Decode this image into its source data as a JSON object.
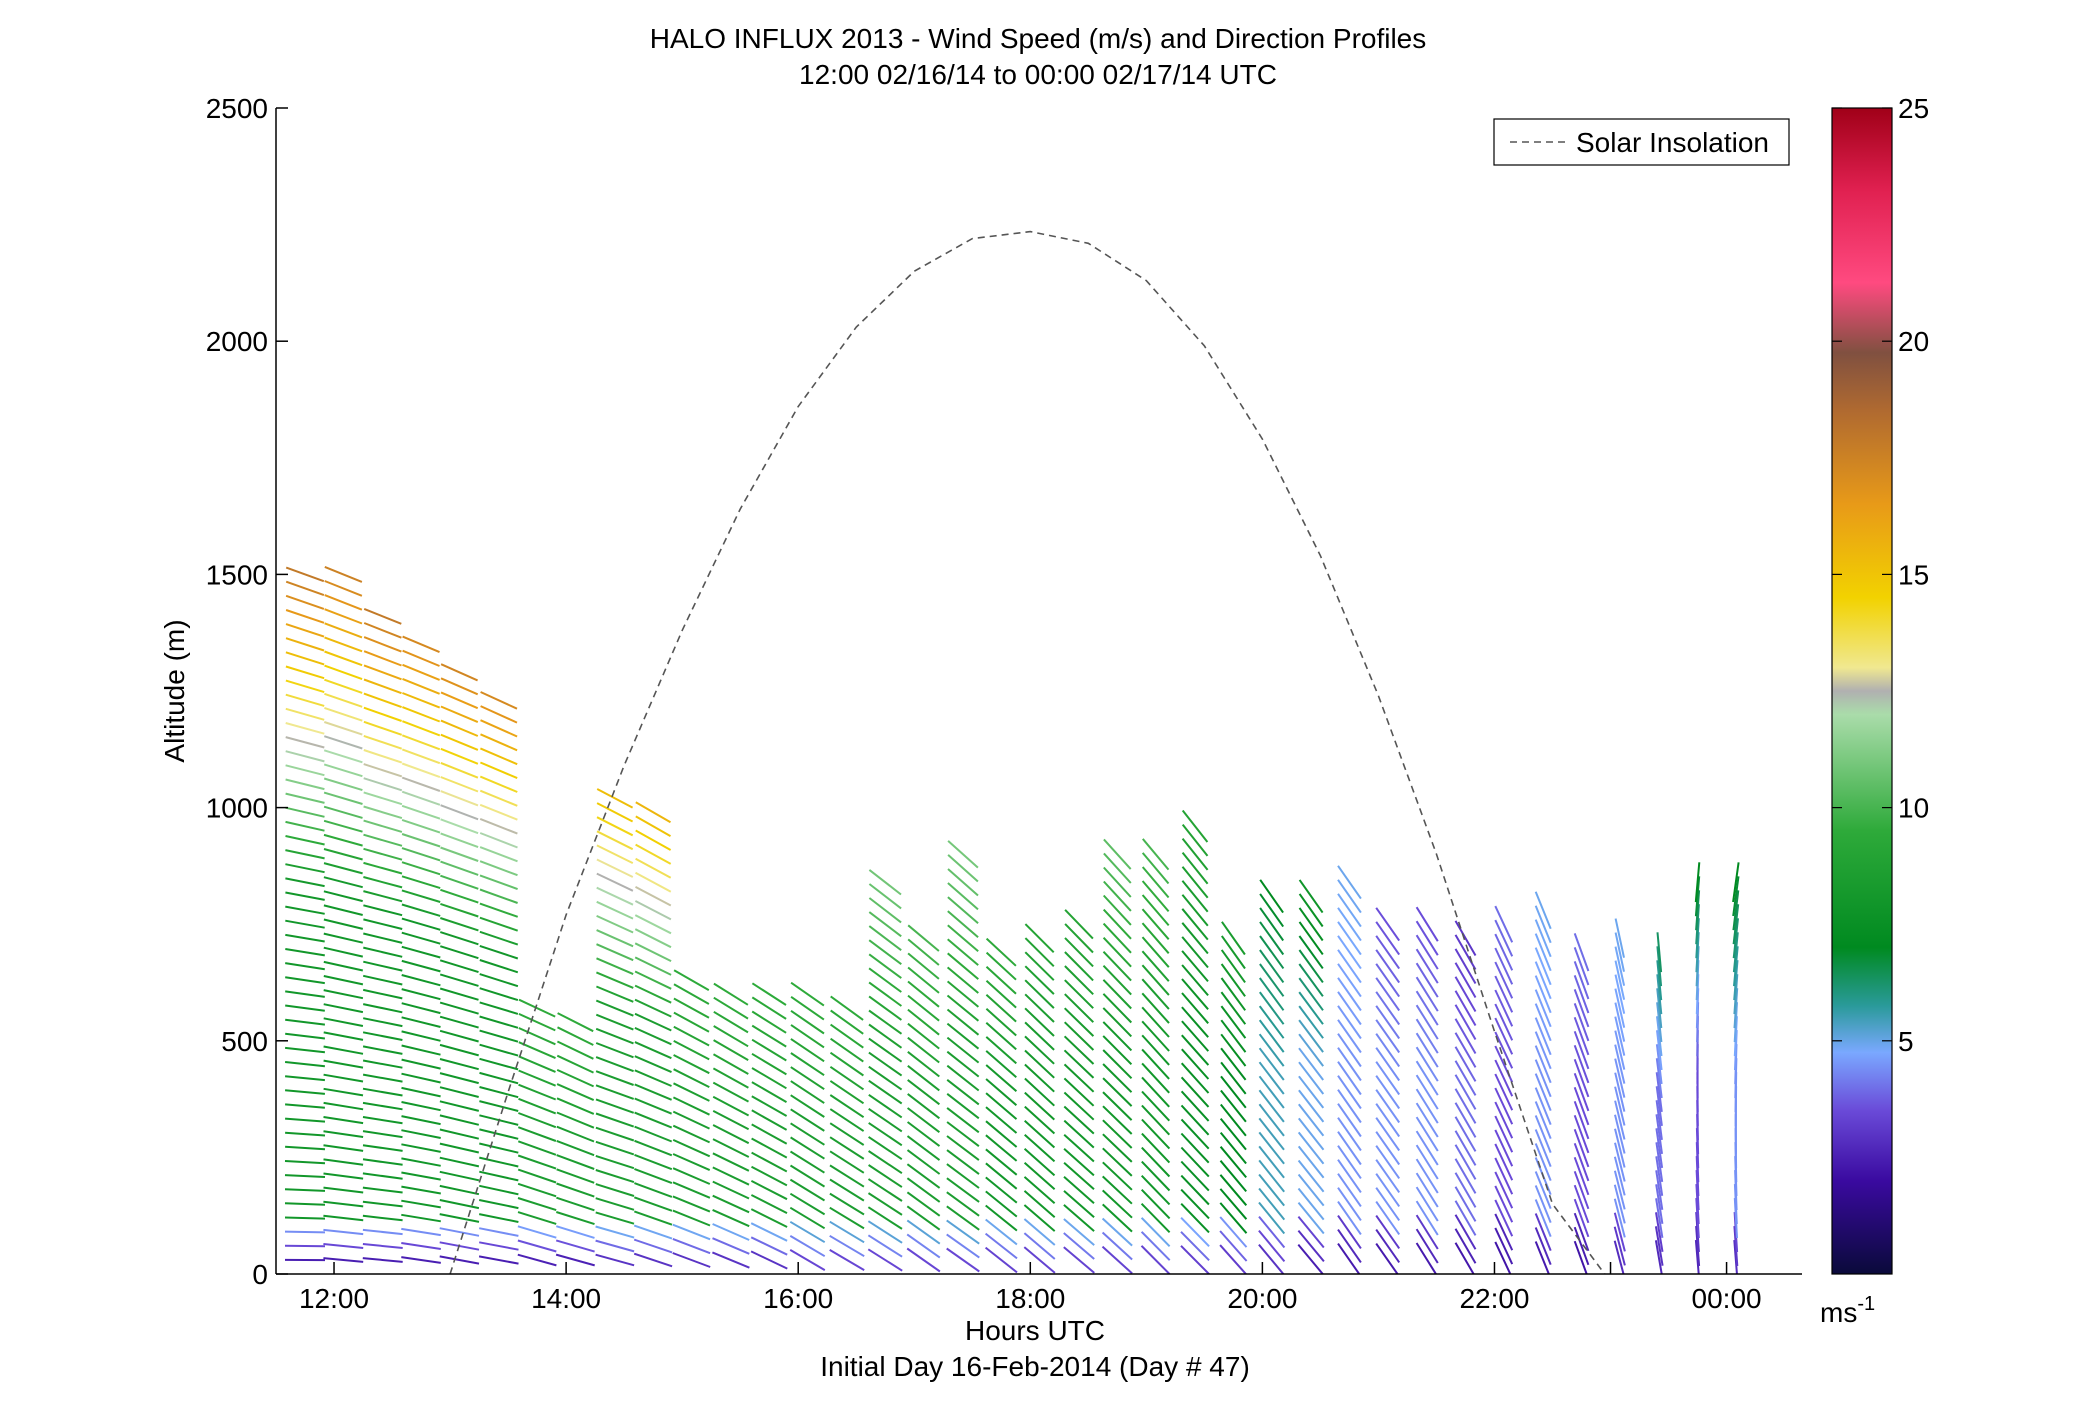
{
  "chart_data": {
    "type": "scatter",
    "title": "HALO INFLUX 2013 - Wind Speed (m/s) and Direction Profiles",
    "subtitle": "12:00 02/16/14 to 00:00 02/17/14  UTC",
    "xlabel": "Hours UTC",
    "xlabel2": "Initial Day 16-Feb-2014 (Day # 47)",
    "ylabel": "Altitude (m)",
    "xlim": [
      11.5,
      24.65
    ],
    "ylim": [
      0,
      2500
    ],
    "x_ticks": [
      12,
      14,
      16,
      18,
      20,
      22,
      23,
      24
    ],
    "x_tick_labels": [
      "12:00",
      "14:00",
      "16:00",
      "18:00",
      "20:00",
      "22:00",
      "",
      "00:00"
    ],
    "y_ticks": [
      0,
      500,
      1000,
      1500,
      2000,
      2500
    ],
    "y_tick_labels": [
      "0",
      "500",
      "1000",
      "1500",
      "2000",
      "2500"
    ],
    "grid": false,
    "legend": {
      "position": "top-right",
      "entries": [
        "Solar Insolation"
      ]
    },
    "colorbar": {
      "min": 0,
      "max": 25,
      "ticks": [
        5,
        10,
        15,
        20,
        25
      ],
      "tick_labels": [
        "5",
        "10",
        "15",
        "20",
        "25"
      ],
      "unit": "ms",
      "unit_exp": "-1"
    },
    "solar_insolation": {
      "x": [
        13.0,
        13.5,
        14.0,
        14.5,
        15.0,
        15.5,
        16.0,
        16.5,
        17.0,
        17.5,
        18.0,
        18.5,
        19.0,
        19.5,
        20.0,
        20.5,
        21.0,
        21.5,
        22.0,
        22.5,
        22.95
      ],
      "y": [
        0,
        390,
        770,
        1090,
        1380,
        1640,
        1860,
        2030,
        2150,
        2220,
        2235,
        2210,
        2130,
        1990,
        1790,
        1540,
        1240,
        900,
        520,
        150,
        0
      ]
    },
    "profiles": [
      {
        "time": 11.75,
        "top": 1510,
        "speed_bottom": 1.5,
        "speed_mid": 8.0,
        "speed_top": 18.0,
        "dir_bottom": 270,
        "dir_top": 290
      },
      {
        "time": 12.08,
        "top": 1500,
        "speed_bottom": 1.5,
        "speed_mid": 8.0,
        "speed_top": 17.5,
        "dir_bottom": 275,
        "dir_top": 292
      },
      {
        "time": 12.42,
        "top": 1420,
        "speed_bottom": 1.5,
        "speed_mid": 8.0,
        "speed_top": 18.0,
        "dir_bottom": 275,
        "dir_top": 292
      },
      {
        "time": 12.75,
        "top": 1370,
        "speed_bottom": 1.5,
        "speed_mid": 8.0,
        "speed_top": 17.5,
        "dir_bottom": 278,
        "dir_top": 293
      },
      {
        "time": 13.08,
        "top": 1300,
        "speed_bottom": 1.5,
        "speed_mid": 8.0,
        "speed_top": 17.5,
        "dir_bottom": 280,
        "dir_top": 294
      },
      {
        "time": 13.42,
        "top": 1250,
        "speed_bottom": 1.5,
        "speed_mid": 8.0,
        "speed_top": 17.5,
        "dir_bottom": 280,
        "dir_top": 295
      },
      {
        "time": 13.75,
        "top": 570,
        "speed_bottom": 1.5,
        "speed_mid": 8.5,
        "speed_top": 9.5,
        "dir_bottom": 285,
        "dir_top": 295
      },
      {
        "time": 14.08,
        "top": 540,
        "speed_bottom": 1.5,
        "speed_mid": 8.5,
        "speed_top": 9.5,
        "dir_bottom": 285,
        "dir_top": 297
      },
      {
        "time": 14.42,
        "top": 1040,
        "speed_bottom": 2.0,
        "speed_mid": 8.5,
        "speed_top": 15.5,
        "dir_bottom": 285,
        "dir_top": 298
      },
      {
        "time": 14.75,
        "top": 990,
        "speed_bottom": 2.0,
        "speed_mid": 8.5,
        "speed_top": 15.5,
        "dir_bottom": 288,
        "dir_top": 300
      },
      {
        "time": 15.08,
        "top": 640,
        "speed_bottom": 2.0,
        "speed_mid": 8.5,
        "speed_top": 9.5,
        "dir_bottom": 290,
        "dir_top": 300
      },
      {
        "time": 15.42,
        "top": 600,
        "speed_bottom": 2.0,
        "speed_mid": 8.5,
        "speed_top": 9.5,
        "dir_bottom": 292,
        "dir_top": 302
      },
      {
        "time": 15.75,
        "top": 610,
        "speed_bottom": 2.0,
        "speed_mid": 8.5,
        "speed_top": 9.5,
        "dir_bottom": 295,
        "dir_top": 303
      },
      {
        "time": 16.08,
        "top": 600,
        "speed_bottom": 2.5,
        "speed_mid": 8.5,
        "speed_top": 9.5,
        "dir_bottom": 300,
        "dir_top": 305
      },
      {
        "time": 16.42,
        "top": 580,
        "speed_bottom": 2.5,
        "speed_mid": 8.5,
        "speed_top": 9.5,
        "dir_bottom": 300,
        "dir_top": 306
      },
      {
        "time": 16.75,
        "top": 860,
        "speed_bottom": 2.5,
        "speed_mid": 8.5,
        "speed_top": 11.0,
        "dir_bottom": 302,
        "dir_top": 308
      },
      {
        "time": 17.08,
        "top": 720,
        "speed_bottom": 2.5,
        "speed_mid": 8.5,
        "speed_top": 10.0,
        "dir_bottom": 305,
        "dir_top": 310
      },
      {
        "time": 17.42,
        "top": 910,
        "speed_bottom": 2.5,
        "speed_mid": 8.5,
        "speed_top": 11.0,
        "dir_bottom": 305,
        "dir_top": 312
      },
      {
        "time": 17.75,
        "top": 700,
        "speed_bottom": 2.5,
        "speed_mid": 8.0,
        "speed_top": 9.5,
        "dir_bottom": 308,
        "dir_top": 313
      },
      {
        "time": 18.08,
        "top": 730,
        "speed_bottom": 2.5,
        "speed_mid": 8.0,
        "speed_top": 9.0,
        "dir_bottom": 310,
        "dir_top": 315
      },
      {
        "time": 18.42,
        "top": 760,
        "speed_bottom": 2.5,
        "speed_mid": 8.0,
        "speed_top": 9.0,
        "dir_bottom": 310,
        "dir_top": 316
      },
      {
        "time": 18.75,
        "top": 910,
        "speed_bottom": 2.5,
        "speed_mid": 8.0,
        "speed_top": 10.5,
        "dir_bottom": 312,
        "dir_top": 318
      },
      {
        "time": 19.08,
        "top": 900,
        "speed_bottom": 2.5,
        "speed_mid": 8.0,
        "speed_top": 10.0,
        "dir_bottom": 315,
        "dir_top": 320
      },
      {
        "time": 19.42,
        "top": 980,
        "speed_bottom": 2.5,
        "speed_mid": 7.5,
        "speed_top": 9.0,
        "dir_bottom": 315,
        "dir_top": 322
      },
      {
        "time": 19.75,
        "top": 740,
        "speed_bottom": 2.5,
        "speed_mid": 7.0,
        "speed_top": 8.5,
        "dir_bottom": 318,
        "dir_top": 325
      },
      {
        "time": 20.08,
        "top": 810,
        "speed_bottom": 2.5,
        "speed_mid": 5.5,
        "speed_top": 7.0,
        "dir_bottom": 320,
        "dir_top": 325
      },
      {
        "time": 20.42,
        "top": 830,
        "speed_bottom": 2.0,
        "speed_mid": 5.0,
        "speed_top": 8.0,
        "dir_bottom": 320,
        "dir_top": 325
      },
      {
        "time": 20.75,
        "top": 860,
        "speed_bottom": 2.0,
        "speed_mid": 4.5,
        "speed_top": 5.0,
        "dir_bottom": 325,
        "dir_top": 325
      },
      {
        "time": 21.08,
        "top": 770,
        "speed_bottom": 2.0,
        "speed_mid": 4.5,
        "speed_top": 3.5,
        "dir_bottom": 325,
        "dir_top": 325
      },
      {
        "time": 21.42,
        "top": 760,
        "speed_bottom": 2.0,
        "speed_mid": 4.5,
        "speed_top": 3.5,
        "dir_bottom": 328,
        "dir_top": 328
      },
      {
        "time": 21.75,
        "top": 740,
        "speed_bottom": 2.0,
        "speed_mid": 4.0,
        "speed_top": 3.0,
        "dir_bottom": 330,
        "dir_top": 330
      },
      {
        "time": 22.08,
        "top": 760,
        "speed_bottom": 2.0,
        "speed_mid": 3.5,
        "speed_top": 4.0,
        "dir_bottom": 335,
        "dir_top": 335
      },
      {
        "time": 22.42,
        "top": 800,
        "speed_bottom": 2.0,
        "speed_mid": 4.5,
        "speed_top": 5.0,
        "dir_bottom": 338,
        "dir_top": 338
      },
      {
        "time": 22.75,
        "top": 690,
        "speed_bottom": 2.0,
        "speed_mid": 3.5,
        "speed_top": 4.0,
        "dir_bottom": 340,
        "dir_top": 340
      },
      {
        "time": 23.08,
        "top": 740,
        "speed_bottom": 2.5,
        "speed_mid": 4.5,
        "speed_top": 5.0,
        "dir_bottom": 345,
        "dir_top": 348
      },
      {
        "time": 23.42,
        "top": 710,
        "speed_bottom": 2.5,
        "speed_mid": 4.0,
        "speed_top": 6.5,
        "dir_bottom": 350,
        "dir_top": 355
      },
      {
        "time": 23.75,
        "top": 840,
        "speed_bottom": 2.5,
        "speed_mid": 3.5,
        "speed_top": 7.0,
        "dir_bottom": 355,
        "dir_top": 5
      },
      {
        "time": 24.08,
        "top": 840,
        "speed_bottom": 2.5,
        "speed_mid": 4.5,
        "speed_top": 7.0,
        "dir_bottom": 355,
        "dir_top": 8
      }
    ]
  }
}
